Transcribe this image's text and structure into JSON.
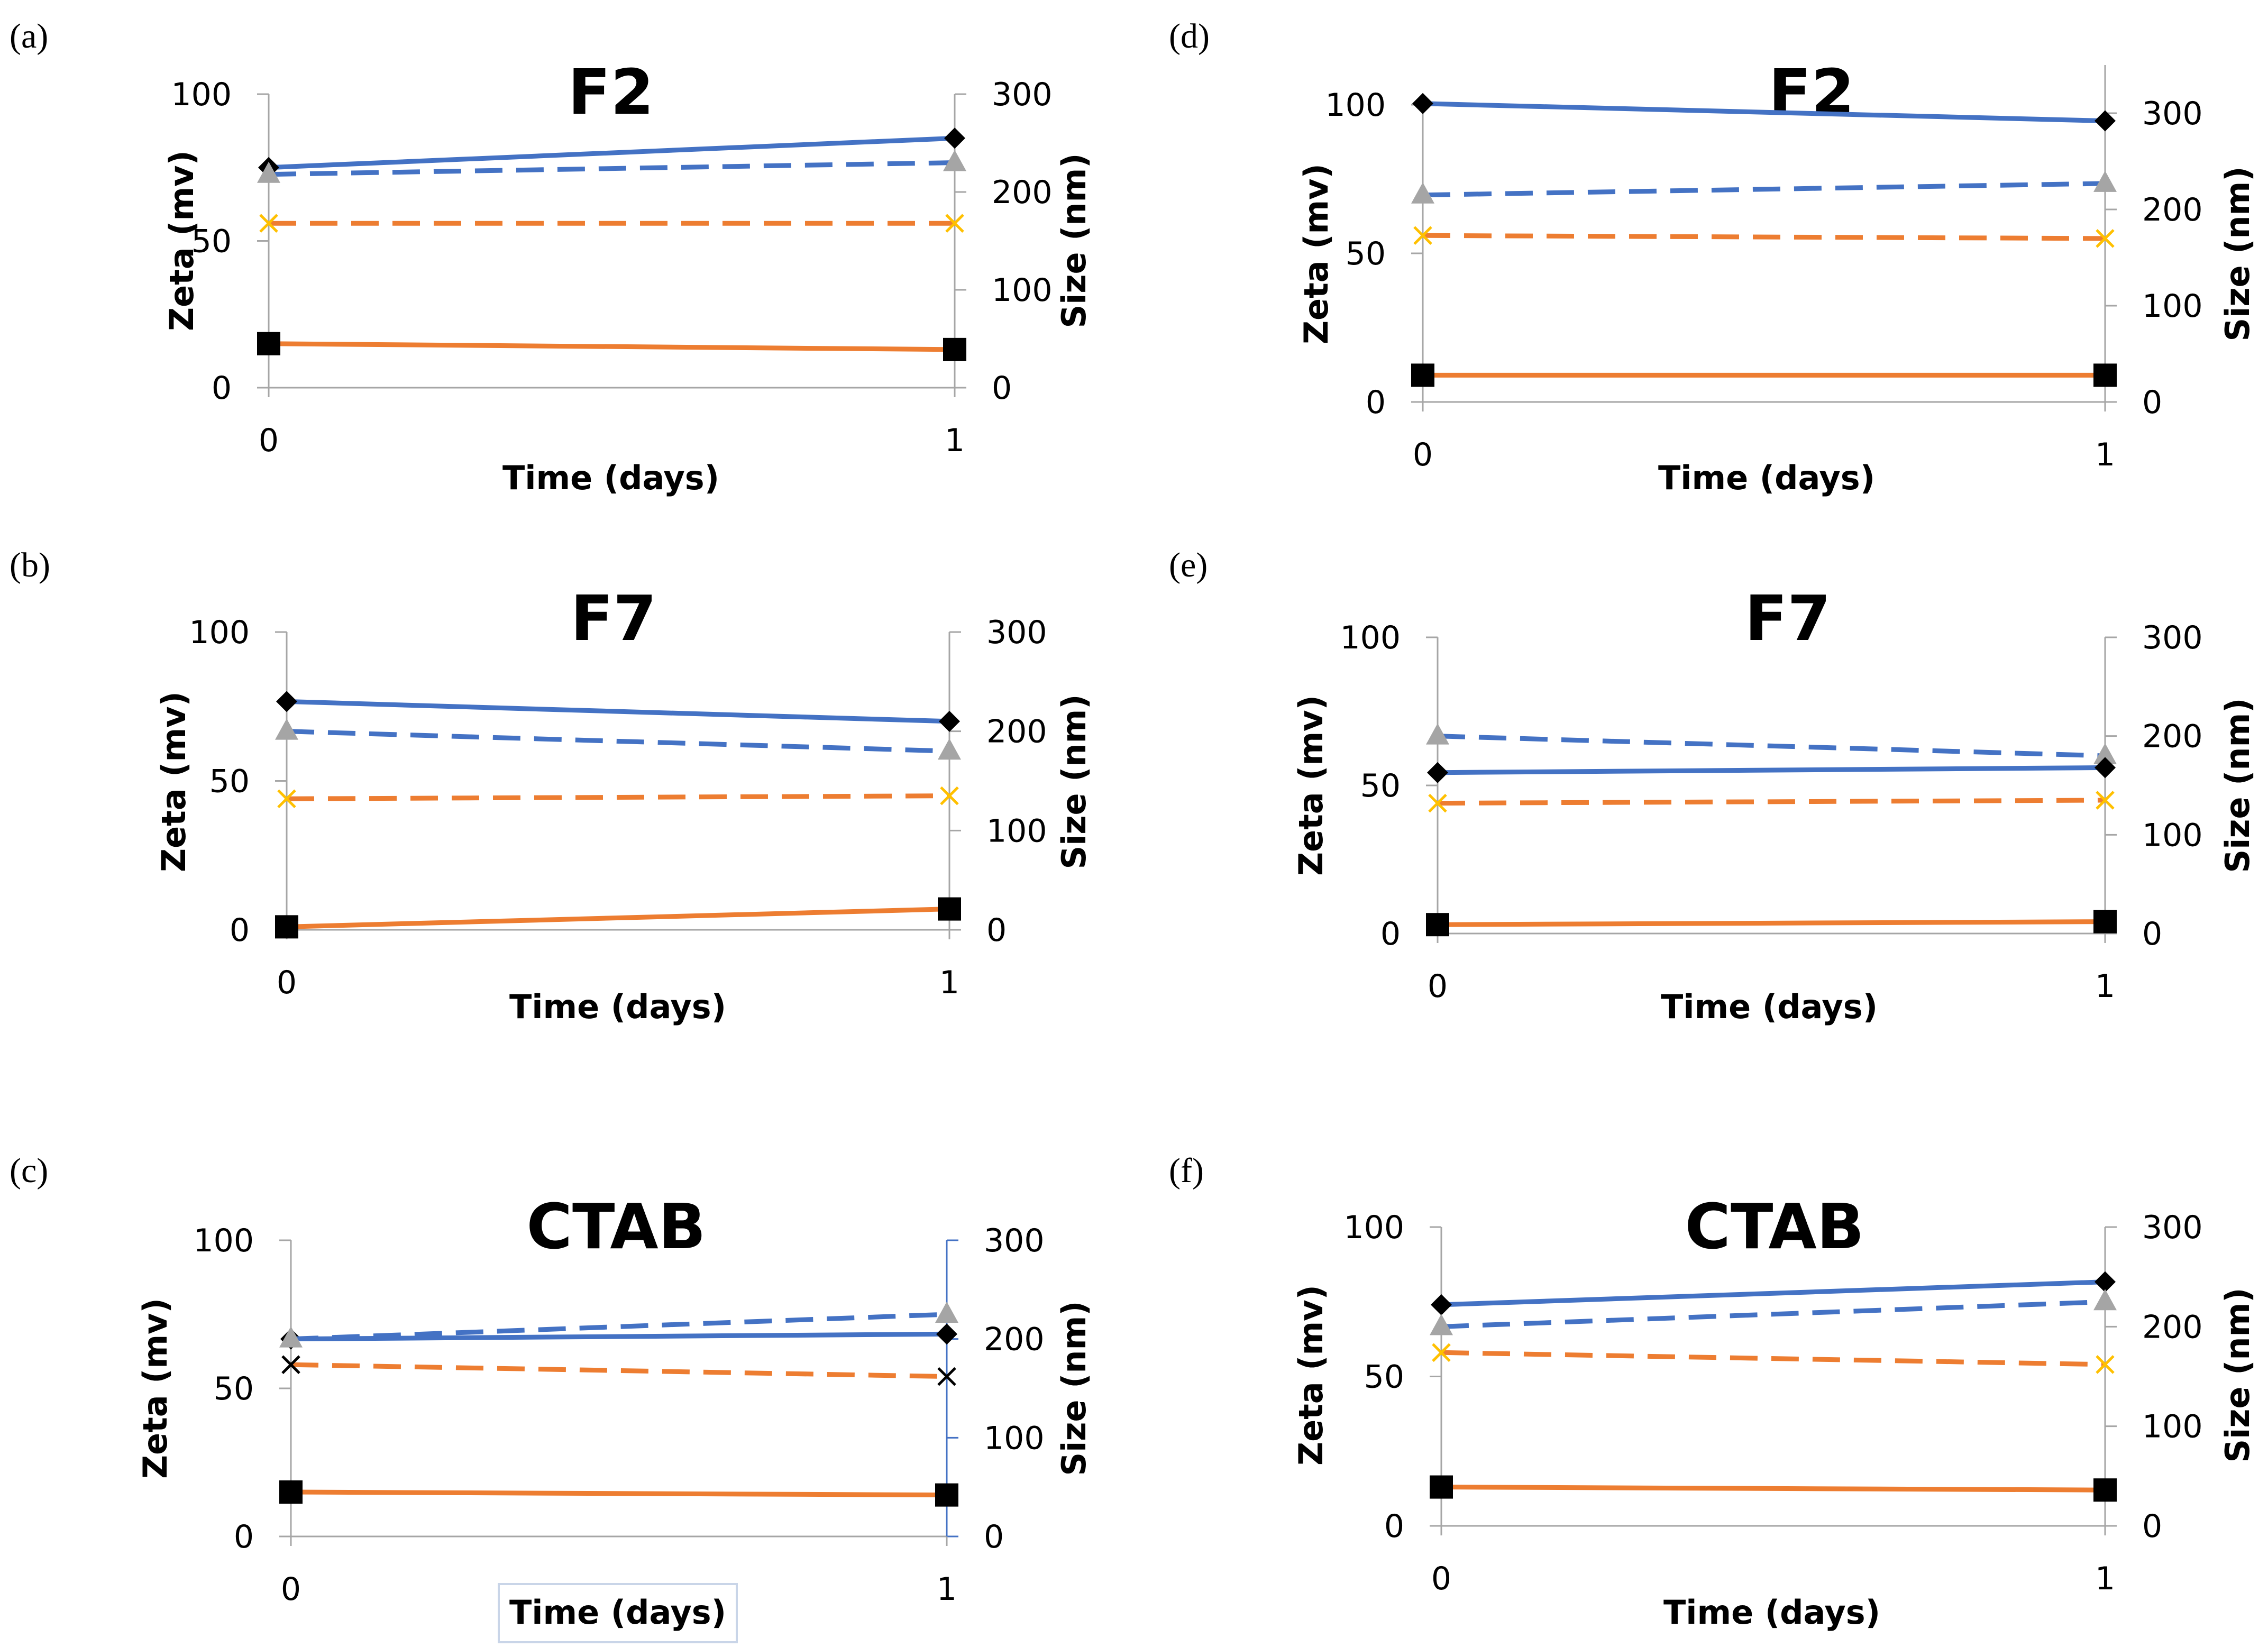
{
  "colors": {
    "blue": "#4472C4",
    "orange": "#ED7D31",
    "gray": "#A5A5A5",
    "yellow": "#FFC000",
    "black": "#000000",
    "axis": "#A6A6A6"
  },
  "chart_data": [
    {
      "panel": "(a)",
      "title": "F2",
      "type": "line",
      "xlabel": "Time (days)",
      "ylabel": "Zeta (mv)",
      "y2label": "Size (nm)",
      "x": [
        0,
        1
      ],
      "xticks": [
        "0",
        "1"
      ],
      "ylim": [
        0,
        100
      ],
      "yticks": [
        "0",
        "50",
        "100"
      ],
      "y2lim": [
        0,
        300
      ],
      "y2ticks": [
        "0",
        "100",
        "200",
        "300"
      ],
      "series": [
        {
          "name": "size-solid",
          "axis": "y2",
          "style": "solid",
          "color": "blue",
          "marker": "diamond",
          "values": [
            225,
            255
          ]
        },
        {
          "name": "size-dashed",
          "axis": "y2",
          "style": "dashed",
          "color": "blue",
          "marker": "triangle",
          "values": [
            218,
            230
          ]
        },
        {
          "name": "zeta-dashed",
          "axis": "y",
          "style": "dashed",
          "color": "orange",
          "marker": "x-yellow",
          "values": [
            56,
            56
          ]
        },
        {
          "name": "zeta-solid",
          "axis": "y",
          "style": "solid",
          "color": "orange",
          "marker": "square",
          "values": [
            15,
            13
          ]
        }
      ]
    },
    {
      "panel": "(b)",
      "title": "F7",
      "type": "line",
      "xlabel": "Time (days)",
      "ylabel": "Zeta (mv)",
      "y2label": "Size (nm)",
      "x": [
        0,
        1
      ],
      "xticks": [
        "0",
        "1"
      ],
      "ylim": [
        0,
        100
      ],
      "yticks": [
        "0",
        "50",
        "100"
      ],
      "y2lim": [
        0,
        300
      ],
      "y2ticks": [
        "0",
        "100",
        "200",
        "300"
      ],
      "series": [
        {
          "name": "size-solid",
          "axis": "y2",
          "style": "solid",
          "color": "blue",
          "marker": "diamond",
          "values": [
            230,
            210
          ]
        },
        {
          "name": "size-dashed",
          "axis": "y2",
          "style": "dashed",
          "color": "blue",
          "marker": "triangle",
          "values": [
            200,
            180
          ]
        },
        {
          "name": "zeta-dashed",
          "axis": "y",
          "style": "dashed",
          "color": "orange",
          "marker": "x-yellow",
          "values": [
            44,
            45
          ]
        },
        {
          "name": "zeta-solid",
          "axis": "y",
          "style": "solid",
          "color": "orange",
          "marker": "square",
          "values": [
            1,
            7
          ]
        }
      ]
    },
    {
      "panel": "(c)",
      "title": "CTAB",
      "type": "line",
      "xlabel": "Time (days)",
      "ylabel": "Zeta (mv)",
      "y2label": "Size (nm)",
      "x": [
        0,
        1
      ],
      "xticks": [
        "0",
        "1"
      ],
      "ylim": [
        0,
        100
      ],
      "yticks": [
        "0",
        "50",
        "100"
      ],
      "y2lim": [
        0,
        300
      ],
      "y2ticks": [
        "0",
        "100",
        "200",
        "300"
      ],
      "series": [
        {
          "name": "size-solid",
          "axis": "y2",
          "style": "solid",
          "color": "blue",
          "marker": "diamond",
          "values": [
            200,
            205
          ]
        },
        {
          "name": "size-dashed",
          "axis": "y2",
          "style": "dashed",
          "color": "blue",
          "marker": "triangle",
          "values": [
            200,
            225
          ]
        },
        {
          "name": "zeta-dashed",
          "axis": "y",
          "style": "dashed",
          "color": "orange",
          "marker": "x-black",
          "values": [
            58,
            54
          ]
        },
        {
          "name": "zeta-solid",
          "axis": "y",
          "style": "solid",
          "color": "orange",
          "marker": "square",
          "values": [
            15,
            14
          ]
        }
      ]
    },
    {
      "panel": "(d)",
      "title": "F2",
      "type": "line",
      "xlabel": "Time (days)",
      "ylabel": "Zeta (mv)",
      "y2label": "Size (nm)",
      "x": [
        0,
        1
      ],
      "xticks": [
        "0",
        "1"
      ],
      "ylim": [
        0,
        100
      ],
      "yticks": [
        "0",
        "50",
        "100"
      ],
      "y2lim": [
        0,
        350
      ],
      "y2ticks": [
        "0",
        "100",
        "200",
        "300"
      ],
      "series": [
        {
          "name": "size-solid",
          "axis": "y2",
          "style": "solid",
          "color": "blue",
          "marker": "diamond",
          "values": [
            310,
            292
          ]
        },
        {
          "name": "size-dashed",
          "axis": "y2",
          "style": "dashed",
          "color": "blue",
          "marker": "triangle",
          "values": [
            215,
            227
          ]
        },
        {
          "name": "zeta-dashed",
          "axis": "y",
          "style": "dashed",
          "color": "orange",
          "marker": "x-yellow",
          "values": [
            56,
            55
          ]
        },
        {
          "name": "zeta-solid",
          "axis": "y",
          "style": "solid",
          "color": "orange",
          "marker": "square",
          "values": [
            9,
            9
          ]
        }
      ]
    },
    {
      "panel": "(e)",
      "title": "F7",
      "type": "line",
      "xlabel": "Time (days)",
      "ylabel": "Zeta (mv)",
      "y2label": "Size (nm)",
      "x": [
        0,
        1
      ],
      "xticks": [
        "0",
        "1"
      ],
      "ylim": [
        0,
        100
      ],
      "yticks": [
        "0",
        "50",
        "100"
      ],
      "y2lim": [
        0,
        300
      ],
      "y2ticks": [
        "0",
        "100",
        "200",
        "300"
      ],
      "series": [
        {
          "name": "size-dashed",
          "axis": "y2",
          "style": "dashed",
          "color": "blue",
          "marker": "triangle",
          "values": [
            200,
            180
          ]
        },
        {
          "name": "size-solid",
          "axis": "y2",
          "style": "solid",
          "color": "blue",
          "marker": "diamond",
          "values": [
            163,
            168
          ]
        },
        {
          "name": "zeta-dashed",
          "axis": "y",
          "style": "dashed",
          "color": "orange",
          "marker": "x-yellow",
          "values": [
            44,
            45
          ]
        },
        {
          "name": "zeta-solid",
          "axis": "y",
          "style": "solid",
          "color": "orange",
          "marker": "square",
          "values": [
            3,
            4
          ]
        }
      ]
    },
    {
      "panel": "(f)",
      "title": "CTAB",
      "type": "line",
      "xlabel": "Time (days)",
      "ylabel": "Zeta (mv)",
      "y2label": "Size (nm)",
      "x": [
        0,
        1
      ],
      "xticks": [
        "0",
        "1"
      ],
      "ylim": [
        0,
        100
      ],
      "yticks": [
        "0",
        "50",
        "100"
      ],
      "y2lim": [
        0,
        300
      ],
      "y2ticks": [
        "0",
        "100",
        "200",
        "300"
      ],
      "series": [
        {
          "name": "size-solid",
          "axis": "y2",
          "style": "solid",
          "color": "blue",
          "marker": "diamond",
          "values": [
            222,
            245
          ]
        },
        {
          "name": "size-dashed",
          "axis": "y2",
          "style": "dashed",
          "color": "blue",
          "marker": "triangle",
          "values": [
            200,
            225
          ]
        },
        {
          "name": "zeta-dashed",
          "axis": "y",
          "style": "dashed",
          "color": "orange",
          "marker": "x-yellow",
          "values": [
            58,
            54
          ]
        },
        {
          "name": "zeta-solid",
          "axis": "y",
          "style": "solid",
          "color": "orange",
          "marker": "square",
          "values": [
            13,
            12
          ]
        }
      ]
    }
  ]
}
